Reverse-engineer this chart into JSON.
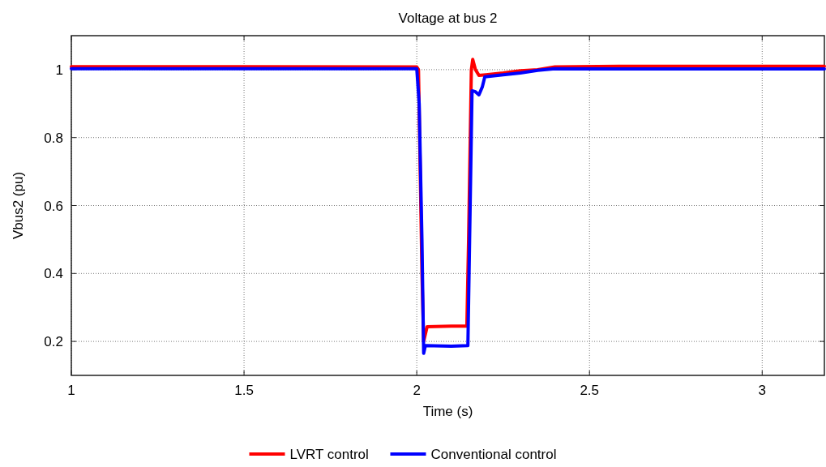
{
  "chart_data": {
    "type": "line",
    "title": "Voltage at bus 2",
    "xlabel": "Time (s)",
    "ylabel": "Vbus2 (pu)",
    "xlim": [
      1,
      3.18
    ],
    "xticks": [
      1,
      1.5,
      2,
      2.5,
      3
    ],
    "ylim": [
      0.1,
      1.1
    ],
    "yticks": [
      0.2,
      0.4,
      0.6,
      0.8,
      1
    ],
    "grid": true,
    "legend": "bottom",
    "line_style": "solid",
    "series": [
      {
        "name": "LVRT control",
        "color": "#ff0000",
        "x": [
          1,
          1.5,
          2,
          2.005,
          2.015,
          2.02,
          2.03,
          2.1,
          2.145,
          2.15,
          2.158,
          2.162,
          2.17,
          2.18,
          2.2,
          2.25,
          2.3,
          2.35,
          2.4,
          2.6,
          3,
          3.18
        ],
        "values": [
          1.009,
          1.009,
          1.008,
          1.0,
          0.4,
          0.2,
          0.243,
          0.245,
          0.245,
          0.5,
          1.0,
          1.03,
          1.0,
          0.983,
          0.985,
          0.99,
          0.997,
          1.0,
          1.008,
          1.01,
          1.01,
          1.01
        ]
      },
      {
        "name": "Conventional control",
        "color": "#0000ff",
        "x": [
          1,
          1.5,
          2,
          2.007,
          2.015,
          2.02,
          2.025,
          2.1,
          2.148,
          2.153,
          2.16,
          2.17,
          2.18,
          2.19,
          2.197,
          2.25,
          2.3,
          2.35,
          2.4,
          2.6,
          3,
          3.18
        ],
        "values": [
          1.003,
          1.003,
          1.003,
          0.9,
          0.5,
          0.165,
          0.188,
          0.186,
          0.188,
          0.5,
          0.938,
          0.935,
          0.926,
          0.95,
          0.979,
          0.985,
          0.99,
          0.998,
          1.003,
          1.002,
          1.002,
          1.002
        ]
      }
    ]
  }
}
